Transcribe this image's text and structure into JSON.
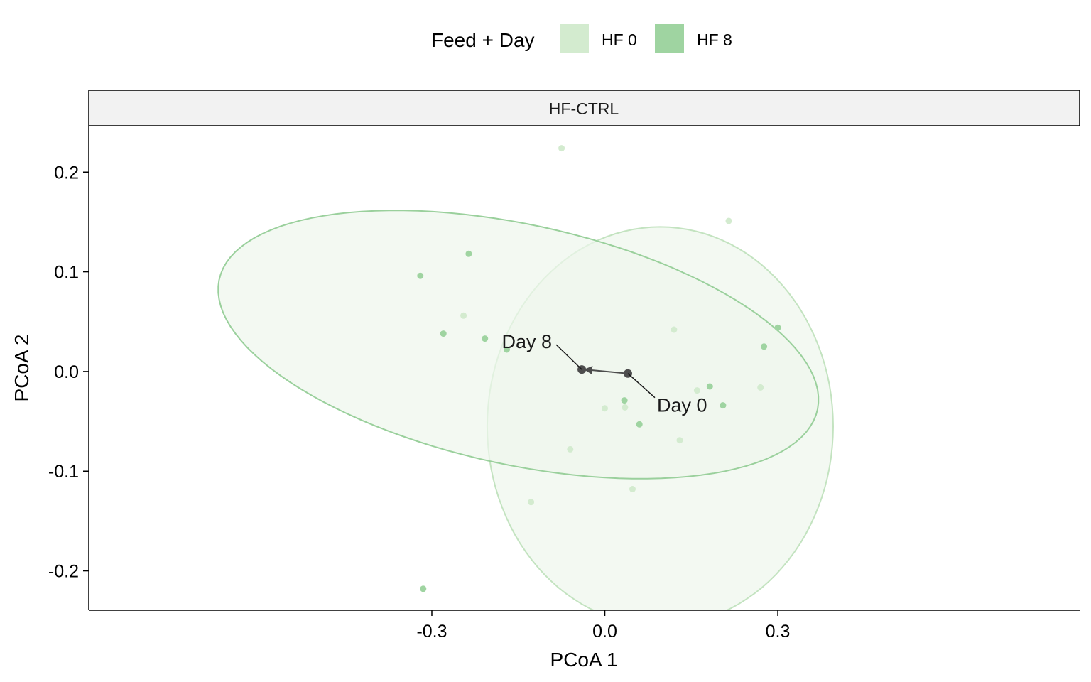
{
  "chart_data": {
    "type": "scatter",
    "facet_label": "HF-CTRL",
    "xlabel": "PCoA 1",
    "ylabel": "PCoA 2",
    "xlim": [
      -0.895,
      0.8235
    ],
    "ylim": [
      -0.2395,
      0.2465
    ],
    "x_ticks": [
      -0.3,
      0.0,
      0.3
    ],
    "x_tick_labels": [
      "-0.3",
      "0.0",
      "0.3"
    ],
    "y_ticks": [
      -0.2,
      -0.1,
      0.0,
      0.1,
      0.2
    ],
    "y_tick_labels": [
      "-0.2",
      "-0.1",
      "0.0",
      "0.1",
      "0.2"
    ],
    "legend": {
      "title": "Feed + Day",
      "position": "top",
      "entries": [
        {
          "label": "HF 0",
          "color": "#d3ebcf"
        },
        {
          "label": "HF 8",
          "color": "#9fd4a1"
        }
      ]
    },
    "series": [
      {
        "name": "HF 0",
        "color": "#d3ebcf",
        "ellipse_stroke": "#c3e3c0",
        "ellipse_fill": "#eef7ed",
        "ellipse": {
          "cx": 0.096,
          "cy": -0.055,
          "rx": 0.3,
          "ry": 0.2,
          "angle_deg": 0
        },
        "points": [
          {
            "x": -0.075,
            "y": 0.224
          },
          {
            "x": 0.215,
            "y": 0.151
          },
          {
            "x": -0.245,
            "y": 0.056
          },
          {
            "x": 0.12,
            "y": 0.042
          },
          {
            "x": 0.16,
            "y": -0.019
          },
          {
            "x": 0.27,
            "y": -0.016
          },
          {
            "x": 0.0,
            "y": -0.037
          },
          {
            "x": 0.035,
            "y": -0.036
          },
          {
            "x": 0.13,
            "y": -0.069
          },
          {
            "x": -0.06,
            "y": -0.078
          },
          {
            "x": 0.048,
            "y": -0.118
          },
          {
            "x": -0.128,
            "y": -0.131
          }
        ]
      },
      {
        "name": "HF 8",
        "color": "#9fd4a1",
        "ellipse_stroke": "#9ad09c",
        "ellipse_fill": "#eef7ed",
        "ellipse": {
          "cx": -0.15,
          "cy": 0.027,
          "rx": 0.5237,
          "ry": 0.122,
          "angle_deg": -6.4
        },
        "points": [
          {
            "x": -0.32,
            "y": 0.096
          },
          {
            "x": -0.236,
            "y": 0.118
          },
          {
            "x": -0.28,
            "y": 0.038
          },
          {
            "x": -0.208,
            "y": 0.033
          },
          {
            "x": -0.17,
            "y": 0.022
          },
          {
            "x": 0.3,
            "y": 0.044
          },
          {
            "x": 0.276,
            "y": 0.025
          },
          {
            "x": 0.182,
            "y": -0.015
          },
          {
            "x": 0.034,
            "y": -0.029
          },
          {
            "x": 0.205,
            "y": -0.034
          },
          {
            "x": 0.06,
            "y": -0.053
          },
          {
            "x": -0.315,
            "y": -0.218
          }
        ]
      }
    ],
    "trajectory": {
      "color": "#4d4d4d",
      "from": {
        "label": "Day 0",
        "x": 0.04,
        "y": -0.002
      },
      "to": {
        "label": "Day 8",
        "x": -0.04,
        "y": 0.002
      }
    }
  }
}
